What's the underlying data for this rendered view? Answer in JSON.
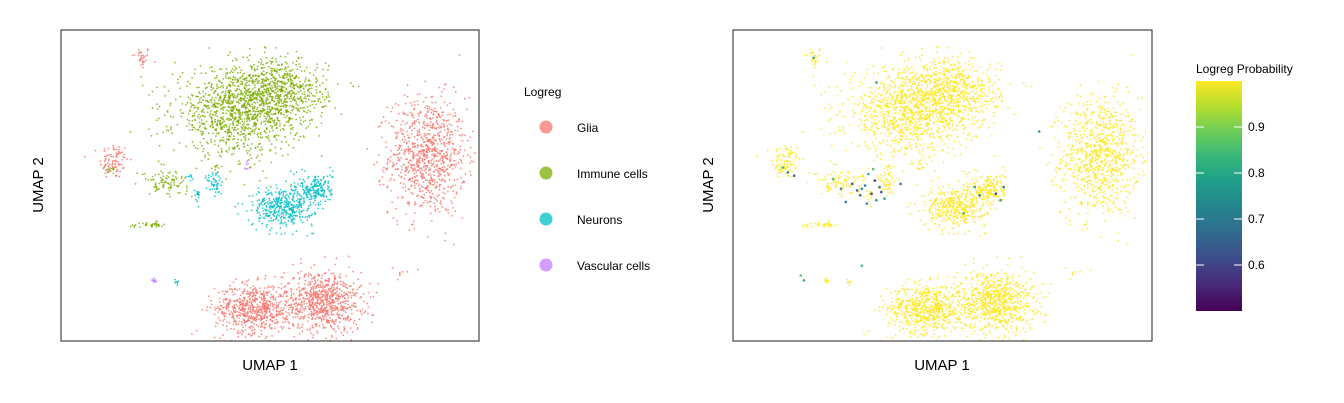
{
  "chart_data": [
    {
      "type": "scatter",
      "xlabel": "UMAP 1",
      "ylabel": "UMAP 2",
      "color_by": "category",
      "legend": {
        "title": "Logreg",
        "position": "right",
        "entries": [
          {
            "label": "Glia",
            "color": "#F8766D"
          },
          {
            "label": "Immune cells",
            "color": "#7CAE00"
          },
          {
            "label": "Neurons",
            "color": "#00BFC4"
          },
          {
            "label": "Vascular cells",
            "color": "#C77CFF"
          }
        ]
      },
      "clusters": [
        {
          "category": "Glia",
          "center": [
            -3.0,
            11.3
          ],
          "spread": [
            0.3,
            0.35
          ],
          "n": 30
        },
        {
          "category": "Glia",
          "center": [
            -4.7,
            5.0
          ],
          "spread": [
            0.45,
            0.55
          ],
          "n": 90
        },
        {
          "category": "Glia",
          "center": [
            14.8,
            5.3
          ],
          "spread": [
            1.2,
            1.8
          ],
          "n": 900
        },
        {
          "category": "Glia",
          "center": [
            4.0,
            -4.0
          ],
          "spread": [
            1.2,
            0.75
          ],
          "n": 650
        },
        {
          "category": "Glia",
          "center": [
            8.3,
            -3.6
          ],
          "spread": [
            1.2,
            0.95
          ],
          "n": 800
        },
        {
          "category": "Glia",
          "center": [
            13.2,
            -1.8
          ],
          "spread": [
            0.15,
            0.08
          ],
          "n": 5
        },
        {
          "category": "Immune cells",
          "center": [
            3.0,
            8.0
          ],
          "spread": [
            2.0,
            1.3
          ],
          "n": 1100
        },
        {
          "category": "Immune cells",
          "center": [
            5.6,
            9.2
          ],
          "spread": [
            1.5,
            1.0
          ],
          "n": 600
        },
        {
          "category": "Immune cells",
          "center": [
            -4.9,
            4.6
          ],
          "spread": [
            0.25,
            0.25
          ],
          "n": 10
        },
        {
          "category": "Immune cells",
          "center": [
            -1.5,
            3.7
          ],
          "spread": [
            0.7,
            0.35
          ],
          "n": 90
        },
        {
          "category": "Immune cells",
          "center": [
            -2.5,
            1.1
          ],
          "spread": [
            0.6,
            0.08
          ],
          "n": 35
        },
        {
          "category": "Immune cells",
          "center": [
            1.8,
            4.7
          ],
          "spread": [
            0.15,
            0.15
          ],
          "n": 8
        },
        {
          "category": "Neurons",
          "center": [
            5.8,
            2.2
          ],
          "spread": [
            0.95,
            0.6
          ],
          "n": 420
        },
        {
          "category": "Neurons",
          "center": [
            7.9,
            3.3
          ],
          "spread": [
            0.5,
            0.5
          ],
          "n": 180
        },
        {
          "category": "Neurons",
          "center": [
            1.6,
            3.6
          ],
          "spread": [
            0.25,
            0.45
          ],
          "n": 50
        },
        {
          "category": "Neurons",
          "center": [
            0.5,
            2.8
          ],
          "spread": [
            0.1,
            0.25
          ],
          "n": 15
        },
        {
          "category": "Neurons",
          "center": [
            0.0,
            4.0
          ],
          "spread": [
            0.1,
            0.15
          ],
          "n": 8
        },
        {
          "category": "Neurons",
          "center": [
            -0.8,
            -2.4
          ],
          "spread": [
            0.07,
            0.1
          ],
          "n": 8
        },
        {
          "category": "Vascular cells",
          "center": [
            -2.2,
            -2.3
          ],
          "spread": [
            0.08,
            0.1
          ],
          "n": 12
        },
        {
          "category": "Vascular cells",
          "center": [
            3.6,
            4.6
          ],
          "spread": [
            0.06,
            0.18
          ],
          "n": 8
        }
      ]
    },
    {
      "type": "scatter",
      "xlabel": "UMAP 1",
      "ylabel": "UMAP 2",
      "color_by": "Logreg Probability",
      "colorbar": {
        "title": "Logreg Probability",
        "position": "right",
        "range": [
          0.5,
          1.0
        ],
        "ticks": [
          0.6,
          0.7,
          0.8,
          0.9
        ],
        "tick_labels": [
          "0.6",
          "0.7",
          "0.8",
          "0.9"
        ],
        "colormap": "viridis"
      },
      "point_color": "#FDE725",
      "low_probability_points": [
        {
          "x": -4.6,
          "y": 4.3,
          "p": 0.72
        },
        {
          "x": -4.2,
          "y": 4.1,
          "p": 0.65
        },
        {
          "x": -4.9,
          "y": 4.6,
          "p": 0.82
        },
        {
          "x": -1.0,
          "y": 2.5,
          "p": 0.68
        },
        {
          "x": -0.3,
          "y": 3.2,
          "p": 0.62
        },
        {
          "x": 0.2,
          "y": 3.5,
          "p": 0.7
        },
        {
          "x": 0.6,
          "y": 3.0,
          "p": 0.6
        },
        {
          "x": 0.9,
          "y": 2.6,
          "p": 0.75
        },
        {
          "x": 1.1,
          "y": 3.4,
          "p": 0.66
        },
        {
          "x": 0.4,
          "y": 4.2,
          "p": 0.8
        },
        {
          "x": 0.8,
          "y": 3.8,
          "p": 0.58
        },
        {
          "x": -0.1,
          "y": 2.9,
          "p": 0.64
        },
        {
          "x": 1.4,
          "y": 2.7,
          "p": 0.78
        },
        {
          "x": 0.3,
          "y": 2.4,
          "p": 0.7
        },
        {
          "x": 0.7,
          "y": 4.5,
          "p": 0.85
        },
        {
          "x": -0.6,
          "y": 3.6,
          "p": 0.6
        },
        {
          "x": 1.2,
          "y": 3.1,
          "p": 0.62
        },
        {
          "x": 0.0,
          "y": 3.3,
          "p": 0.74
        },
        {
          "x": 7.0,
          "y": 3.4,
          "p": 0.8
        },
        {
          "x": 7.3,
          "y": 2.9,
          "p": 0.7
        },
        {
          "x": 8.3,
          "y": 3.0,
          "p": 0.6
        },
        {
          "x": 8.8,
          "y": 3.4,
          "p": 0.72
        },
        {
          "x": 8.6,
          "y": 2.6,
          "p": 0.78
        },
        {
          "x": 6.3,
          "y": 1.8,
          "p": 0.82
        },
        {
          "x": 11.0,
          "y": 6.8,
          "p": 0.76
        },
        {
          "x": -3.0,
          "y": 11.3,
          "p": 0.8
        },
        {
          "x": -1.3,
          "y": 3.3,
          "p": 0.74
        },
        {
          "x": -1.8,
          "y": 3.9,
          "p": 0.85
        },
        {
          "x": 2.4,
          "y": 3.6,
          "p": 0.68
        },
        {
          "x": 0.0,
          "y": -1.4,
          "p": 0.84
        },
        {
          "x": -3.8,
          "y": -2.0,
          "p": 0.86
        },
        {
          "x": -3.6,
          "y": -2.3,
          "p": 0.8
        },
        {
          "x": 0.9,
          "y": 9.8,
          "p": 0.78
        }
      ]
    }
  ]
}
